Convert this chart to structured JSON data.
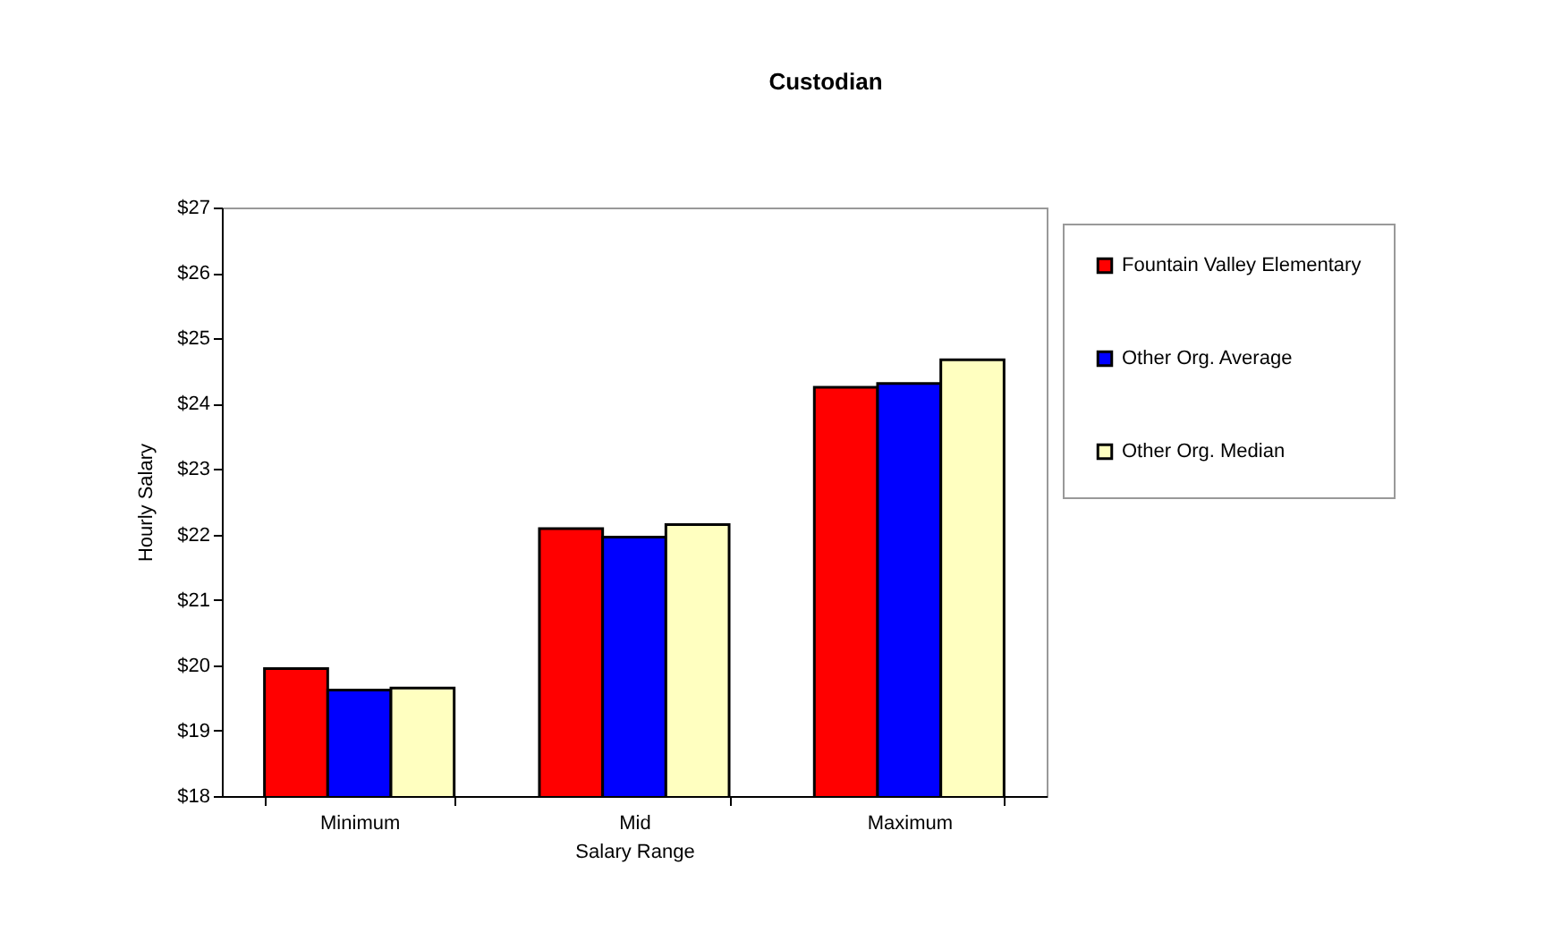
{
  "chart_data": {
    "type": "bar",
    "title": "Custodian",
    "xlabel": "Salary Range",
    "ylabel": "Hourly Salary",
    "categories": [
      "Minimum",
      "Mid",
      "Maximum"
    ],
    "series": [
      {
        "name": "Fountain Valley Elementary",
        "color": "#ff0000",
        "values": [
          19.95,
          22.09,
          24.25
        ]
      },
      {
        "name": "Other Org. Average",
        "color": "#0000ff",
        "values": [
          19.62,
          21.96,
          24.31
        ]
      },
      {
        "name": "Other Org. Median",
        "color": "#ffffc0",
        "values": [
          19.65,
          22.15,
          24.67
        ]
      }
    ],
    "ylim": [
      18,
      27
    ],
    "yticks": [
      {
        "value": 18,
        "label": "$18"
      },
      {
        "value": 19,
        "label": "$19"
      },
      {
        "value": 20,
        "label": "$20"
      },
      {
        "value": 21,
        "label": "$21"
      },
      {
        "value": 22,
        "label": "$22"
      },
      {
        "value": 23,
        "label": "$23"
      },
      {
        "value": 24,
        "label": "$24"
      },
      {
        "value": 25,
        "label": "$25"
      },
      {
        "value": 26,
        "label": "$26"
      },
      {
        "value": 27,
        "label": "$27"
      }
    ],
    "grid": false,
    "legend": "right"
  }
}
